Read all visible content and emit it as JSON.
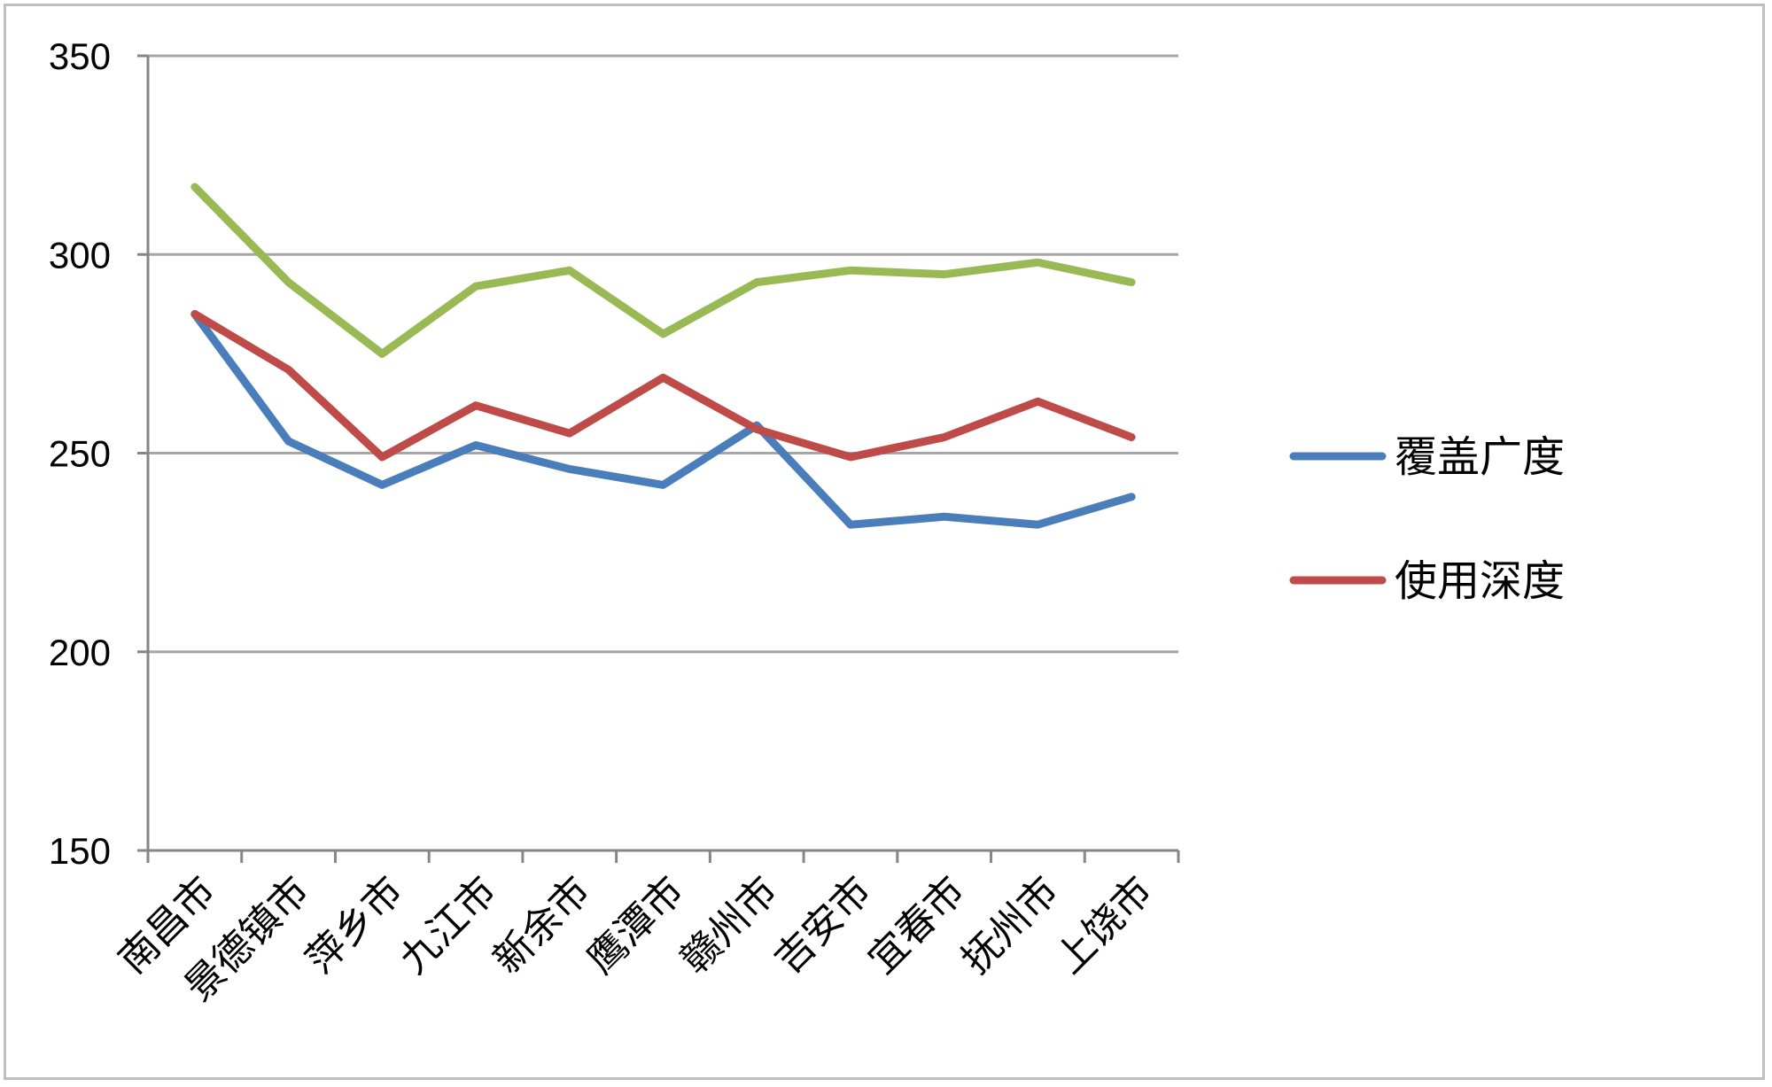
{
  "chart_data": {
    "type": "line",
    "title": "",
    "xlabel": "",
    "ylabel": "",
    "categories": [
      "南昌市",
      "景德镇市",
      "萍乡市",
      "九江市",
      "新余市",
      "鹰潭市",
      "赣州市",
      "吉安市",
      "宜春市",
      "抚州市",
      "上饶市"
    ],
    "ylim": [
      150,
      350
    ],
    "yticks": [
      150,
      200,
      250,
      300,
      350
    ],
    "grid": "horizontal",
    "legend_position": "right",
    "series": [
      {
        "name": "覆盖广度",
        "color": "#4a7ebb",
        "values": [
          285,
          253,
          242,
          252,
          246,
          242,
          257,
          232,
          234,
          232,
          239
        ]
      },
      {
        "name": "使用深度",
        "color": "#be4b48",
        "values": [
          285,
          271,
          249,
          262,
          255,
          269,
          256,
          249,
          254,
          263,
          254
        ]
      },
      {
        "name": "",
        "color": "#98b954",
        "values": [
          317,
          293,
          275,
          292,
          296,
          280,
          293,
          296,
          295,
          298,
          293
        ]
      }
    ]
  }
}
